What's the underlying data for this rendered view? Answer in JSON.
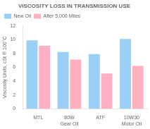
{
  "chart_data": {
    "type": "bar",
    "title": "VISCOSITY LOSS IN TRANSMISSION USE",
    "ylabel": "Viscosity Units, cSt ® 100°C",
    "categories": [
      "MTL",
      "80W\nGear Oil",
      "ATF",
      "10W30\nMotor Oil"
    ],
    "series": [
      {
        "name": "New Oil",
        "values": [
          9.9,
          8.2,
          7.9,
          10.1
        ]
      },
      {
        "name": "After 5,000 Miles",
        "values": [
          9.1,
          7.1,
          5.1,
          6.2
        ]
      }
    ],
    "ylim": [
      0,
      12
    ],
    "yticks": [
      0,
      2,
      4,
      6,
      8,
      10,
      12
    ],
    "grid": false,
    "legend": "upper left"
  }
}
